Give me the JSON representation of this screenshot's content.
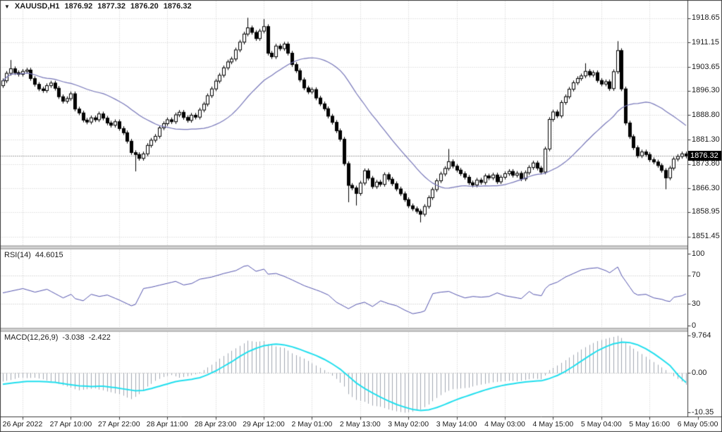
{
  "header": {
    "symbol": "XAUUSD,H1",
    "open": "1876.92",
    "high": "1877.32",
    "low": "1876.20",
    "close": "1876.32"
  },
  "icons": {
    "symbol_dropdown": "▼"
  },
  "colors": {
    "background": "#ffffff",
    "border": "#3a3a3a",
    "grid": "#cdcdcd",
    "text": "#1b1b1b",
    "candle_up_fill": "#ffffff",
    "candle_down_fill": "#000000",
    "candle_outline": "#000000",
    "ma_line": "#7676b9",
    "rsi_line": "#5353ae",
    "rsi_levels": "#bdbdbd",
    "macd_histogram": "#a2a8b2",
    "macd_signal": "#21dfee",
    "separator": "#d6d6d6",
    "separator_edge": "#8f8f8f",
    "current_price_line": "#444444",
    "price_box_bg": "#000000",
    "price_box_text": "#ffffff"
  },
  "chart_data": {
    "type": "candlestick",
    "title": "XAUUSD,H1",
    "x_labels": [
      "26 Apr 2022",
      "27 Apr 10:00",
      "27 Apr 22:00",
      "28 Apr 11:00",
      "28 Apr 23:00",
      "29 Apr 12:00",
      "2 May 01:00",
      "2 May 13:00",
      "3 May 02:00",
      "3 May 14:00",
      "4 May 03:00",
      "4 May 15:00",
      "5 May 04:00",
      "5 May 16:00",
      "6 May 05:00"
    ],
    "price_axis_labels": [
      "1918.65",
      "1911.15",
      "1903.65",
      "1896.30",
      "1888.80",
      "1881.30",
      "1873.80",
      "1866.30",
      "1858.95",
      "1851.45"
    ],
    "current_price": "1876.32",
    "price_panel": {
      "first_open": 1898.0,
      "default_wick": 0.7,
      "closes": [
        1899.5,
        1901.8,
        1903.2,
        1902.0,
        1901.5,
        1902.4,
        1902.8,
        1900.2,
        1898.4,
        1897.0,
        1896.5,
        1898.0,
        1898.8,
        1897.2,
        1894.6,
        1893.2,
        1894.0,
        1895.5,
        1890.8,
        1889.6,
        1887.4,
        1886.8,
        1888.1,
        1887.5,
        1889.3,
        1888.0,
        1886.5,
        1885.8,
        1886.9,
        1884.8,
        1883.5,
        1880.9,
        1877.4,
        1876.8,
        1875.6,
        1877.0,
        1879.6,
        1881.2,
        1882.4,
        1885.0,
        1886.3,
        1887.5,
        1886.9,
        1889.0,
        1889.8,
        1888.2,
        1887.3,
        1888.9,
        1888.3,
        1890.5,
        1892.3,
        1894.9,
        1897.0,
        1899.4,
        1901.2,
        1903.5,
        1905.3,
        1906.2,
        1909.0,
        1911.4,
        1913.9,
        1915.8,
        1914.4,
        1912.5,
        1914.8,
        1916.2,
        1908.0,
        1906.9,
        1910.2,
        1909.4,
        1910.8,
        1908.0,
        1904.5,
        1902.6,
        1899.8,
        1897.3,
        1896.1,
        1896.8,
        1894.2,
        1892.4,
        1890.9,
        1888.6,
        1886.7,
        1884.1,
        1881.5,
        1874.0,
        1867.3,
        1866.5,
        1864.8,
        1868.0,
        1871.8,
        1869.5,
        1866.9,
        1868.3,
        1867.6,
        1870.6,
        1869.2,
        1867.8,
        1866.2,
        1864.7,
        1862.9,
        1861.0,
        1860.1,
        1859.3,
        1858.4,
        1860.8,
        1863.5,
        1866.0,
        1868.7,
        1870.8,
        1872.5,
        1874.6,
        1873.2,
        1872.0,
        1870.9,
        1869.8,
        1868.1,
        1867.4,
        1868.9,
        1868.2,
        1870.2,
        1869.6,
        1870.5,
        1868.4,
        1869.8,
        1870.9,
        1871.6,
        1870.4,
        1871.0,
        1869.3,
        1871.2,
        1872.8,
        1874.2,
        1872.6,
        1871.4,
        1878.5,
        1887.6,
        1889.9,
        1888.7,
        1892.8,
        1894.6,
        1896.9,
        1898.9,
        1900.2,
        1901.0,
        1902.4,
        1901.3,
        1902.0,
        1899.6,
        1898.5,
        1899.2,
        1897.1,
        1902.3,
        1908.8,
        1897.0,
        1886.5,
        1882.3,
        1878.9,
        1876.4,
        1877.6,
        1876.8,
        1875.2,
        1874.5,
        1873.4,
        1871.9,
        1869.6,
        1872.6,
        1875.4,
        1876.2,
        1877.0,
        1876.32
      ],
      "wick_overrides": {
        "2": [
          2.0,
          0
        ],
        "33": [
          0,
          4.5
        ],
        "61": [
          2.4,
          0
        ],
        "65": [
          1.6,
          0
        ],
        "86": [
          0,
          4.5
        ],
        "88": [
          0,
          3.0
        ],
        "104": [
          0,
          1.8
        ],
        "111": [
          3.2,
          0
        ],
        "145": [
          1.8,
          0
        ],
        "153": [
          2.2,
          0
        ],
        "165": [
          0,
          2.8
        ]
      },
      "ma_period": 26
    },
    "rsi": {
      "label": "RSI(14)",
      "value": "44.6015",
      "axis_labels": [
        "100",
        "70",
        "30",
        "0"
      ],
      "levels": [
        70,
        30
      ],
      "values": [
        46,
        47.2,
        48.4,
        49.6,
        50.8,
        52,
        50.3,
        48.7,
        47,
        48.3,
        49.7,
        51,
        48,
        45,
        42,
        39,
        41.5,
        44,
        38,
        36.5,
        35,
        39.5,
        44,
        42.5,
        41,
        42,
        43,
        40.7,
        38.3,
        36,
        33.3,
        30.7,
        28,
        30,
        41,
        52,
        53,
        54,
        55.3,
        56.7,
        58,
        59.3,
        60.7,
        62,
        59.5,
        57,
        58,
        59,
        62,
        65,
        66,
        67,
        68,
        69.7,
        71.3,
        73,
        74.3,
        75.7,
        77,
        80,
        83,
        84,
        80,
        76,
        77.5,
        79,
        72,
        72.5,
        73,
        71,
        69,
        66.5,
        64,
        61.3,
        58.7,
        56,
        54,
        52,
        50,
        48,
        45.5,
        43,
        38,
        33,
        30,
        27,
        24,
        27,
        30,
        31.5,
        33,
        30,
        27,
        31,
        35,
        33,
        31,
        29.5,
        28,
        25,
        22,
        19.5,
        17,
        18,
        19,
        21,
        33,
        45,
        46,
        47,
        47.5,
        48,
        45.5,
        43,
        41,
        39,
        40,
        41,
        40.5,
        40,
        40.5,
        41,
        43.5,
        46,
        44,
        42,
        41,
        40,
        39,
        38,
        43,
        48,
        44,
        43,
        42,
        52,
        57,
        59,
        61,
        64.5,
        68,
        70.5,
        73,
        75.5,
        78,
        79,
        80,
        80.5,
        81,
        79,
        77,
        74,
        78,
        82,
        70,
        62,
        54,
        46,
        43,
        43.5,
        44,
        41.5,
        39,
        38,
        37,
        35,
        34,
        40,
        41,
        42,
        44.6
      ]
    },
    "macd": {
      "label": "MACD(12,26,9)",
      "macd_value": "-3.038",
      "signal_value": "-2.422",
      "axis_labels": [
        "9.764",
        "0.00",
        "-10.35"
      ],
      "macd": [
        -2.2,
        -2.0,
        -1.8,
        -1.5,
        -1.2,
        -1.25,
        -1.3,
        -1.25,
        -1.2,
        -1.4,
        -1.6,
        -1.9,
        -2.2,
        -2.5,
        -2.8,
        -3.2,
        -3.5,
        -3.8,
        -4.2,
        -4.5,
        -4.35,
        -4.2,
        -4.1,
        -4.0,
        -4.3,
        -4.5,
        -4.8,
        -5.0,
        -5.3,
        -5.5,
        -5.9,
        -6.4,
        -6.8,
        -6.2,
        -5.5,
        -4.5,
        -3.5,
        -2.8,
        -2.0,
        -1.5,
        -1.0,
        -0.75,
        -0.5,
        -0.85,
        -1.2,
        -1.0,
        -0.8,
        -0.55,
        -0.3,
        0.25,
        0.8,
        1.5,
        2.2,
        3.0,
        3.8,
        4.5,
        5.2,
        5.85,
        6.5,
        7.15,
        7.8,
        8.5,
        8.35,
        8.2,
        8.3,
        8.4,
        7.6,
        7.3,
        7.0,
        6.8,
        6.6,
        5.9,
        5.2,
        4.7,
        4.3,
        3.8,
        3.2,
        2.6,
        2.0,
        1.4,
        0.8,
        0.2,
        -0.65,
        -1.5,
        -2.5,
        -3.5,
        -5.5,
        -6.25,
        -7.0,
        -7.25,
        -7.5,
        -8.0,
        -8.5,
        -8.65,
        -8.8,
        -9.15,
        -9.5,
        -9.75,
        -10.0,
        -10.18,
        -10.35,
        -10.22,
        -10.1,
        -9.85,
        -9.6,
        -8.9,
        -8.2,
        -7.35,
        -6.5,
        -5.75,
        -5.0,
        -4.6,
        -4.2,
        -4.1,
        -4.0,
        -3.9,
        -3.8,
        -3.5,
        -3.2,
        -3.0,
        -2.8,
        -2.6,
        -2.4,
        -2.3,
        -2.2,
        -2.1,
        -2.0,
        -2.05,
        -2.1,
        -1.95,
        -1.8,
        -1.6,
        -1.4,
        -1.5,
        -1.6,
        -0.6,
        0.8,
        1.4,
        2.0,
        2.7,
        3.4,
        4.1,
        4.8,
        5.5,
        6.2,
        6.8,
        7.4,
        7.9,
        8.4,
        8.7,
        9.0,
        9.25,
        9.5,
        9.764,
        9.2,
        8.0,
        7.2,
        6.4,
        5.7,
        5.0,
        4.3,
        3.6,
        2.9,
        2.2,
        1.5,
        0.8,
        0.0,
        -0.8,
        -1.5,
        -2.2,
        -3.038
      ],
      "signal": [
        -2.9,
        -2.77,
        -2.63,
        -2.5,
        -2.38,
        -2.27,
        -2.15,
        -2.16,
        -2.17,
        -2.19,
        -2.2,
        -2.27,
        -2.33,
        -2.4,
        -2.57,
        -2.73,
        -2.9,
        -3.03,
        -3.17,
        -3.3,
        -3.37,
        -3.43,
        -3.5,
        -3.47,
        -3.43,
        -3.4,
        -3.53,
        -3.67,
        -3.8,
        -3.97,
        -4.13,
        -4.3,
        -4.45,
        -4.6,
        -4.55,
        -4.5,
        -4.25,
        -4.0,
        -3.7,
        -3.4,
        -3.1,
        -2.8,
        -2.5,
        -2.2,
        -2.05,
        -1.9,
        -1.75,
        -1.6,
        -1.4,
        -1.2,
        -0.8,
        -0.4,
        0.1,
        0.6,
        1.2,
        1.8,
        2.4,
        3.0,
        3.7,
        4.4,
        5.0,
        5.6,
        6.05,
        6.5,
        6.85,
        7.2,
        7.35,
        7.5,
        7.6,
        7.5,
        7.4,
        7.15,
        6.9,
        6.55,
        6.2,
        5.8,
        5.4,
        5.0,
        4.6,
        4.1,
        3.6,
        3.0,
        2.4,
        1.7,
        1.0,
        0.1,
        -0.8,
        -1.7,
        -2.6,
        -3.3,
        -4.0,
        -4.6,
        -5.2,
        -5.75,
        -6.3,
        -6.8,
        -7.3,
        -7.75,
        -8.2,
        -8.55,
        -8.9,
        -9.2,
        -9.5,
        -9.65,
        -9.8,
        -9.7,
        -9.6,
        -9.3,
        -9.0,
        -8.6,
        -8.2,
        -7.75,
        -7.3,
        -6.9,
        -6.5,
        -6.15,
        -5.8,
        -5.45,
        -5.1,
        -4.75,
        -4.4,
        -4.1,
        -3.8,
        -3.55,
        -3.3,
        -3.1,
        -2.9,
        -2.75,
        -2.6,
        -2.45,
        -2.3,
        -2.2,
        -2.1,
        -2.05,
        -2.0,
        -1.7,
        -1.4,
        -1.0,
        -0.6,
        -0.05,
        0.5,
        1.15,
        1.8,
        2.5,
        3.2,
        3.9,
        4.6,
        5.25,
        5.9,
        6.4,
        6.9,
        7.3,
        7.7,
        7.9,
        8.1,
        8.05,
        8.0,
        7.7,
        7.4,
        6.9,
        6.4,
        5.75,
        5.1,
        4.35,
        3.6,
        2.8,
        2.0,
        0.75,
        -0.5,
        -1.5,
        -2.422
      ]
    }
  }
}
